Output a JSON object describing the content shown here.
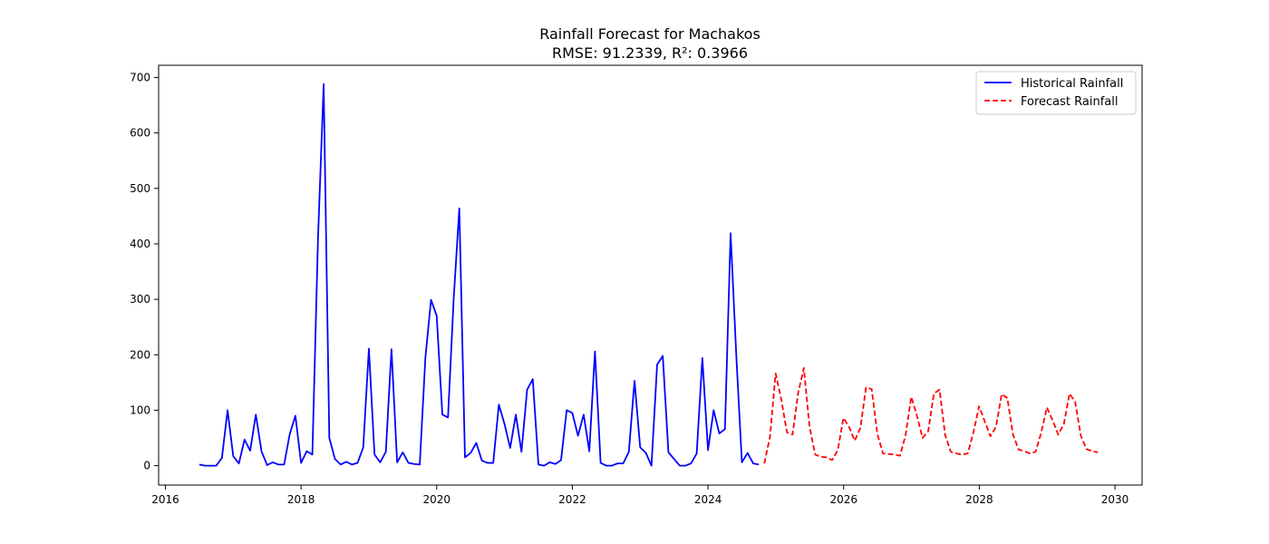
{
  "chart_data": {
    "type": "line",
    "title": "Rainfall Forecast for Machakos",
    "subtitle": "RMSE: 91.2339, R²: 0.3966",
    "xlabel": "",
    "ylabel": "",
    "xlim": [
      2015.9,
      2030.4
    ],
    "ylim": [
      -35,
      722
    ],
    "xticks": [
      2016,
      2018,
      2020,
      2022,
      2024,
      2026,
      2028,
      2030
    ],
    "xtick_labels": [
      "2016",
      "2018",
      "2020",
      "2022",
      "2024",
      "2026",
      "2028",
      "2030"
    ],
    "yticks": [
      0,
      100,
      200,
      300,
      400,
      500,
      600,
      700
    ],
    "ytick_labels": [
      "0",
      "100",
      "200",
      "300",
      "400",
      "500",
      "600",
      "700"
    ],
    "grid": false,
    "legend_position": "upper-right",
    "series": [
      {
        "name": "Historical Rainfall",
        "color": "#0000ff",
        "dash": "solid",
        "start": 2016.5,
        "step": 0.08333,
        "values": [
          2,
          0,
          0,
          0,
          14,
          100,
          17,
          4,
          47,
          27,
          92,
          26,
          1,
          6,
          2,
          2,
          57,
          90,
          5,
          26,
          20,
          410,
          688,
          50,
          12,
          2,
          7,
          2,
          5,
          33,
          211,
          20,
          6,
          25,
          210,
          6,
          24,
          5,
          3,
          2,
          195,
          299,
          270,
          92,
          87,
          300,
          464,
          15,
          23,
          41,
          9,
          5,
          5,
          110,
          75,
          32,
          92,
          25,
          137,
          156,
          2,
          0,
          6,
          3,
          10,
          100,
          95,
          54,
          92,
          26,
          206,
          5,
          0,
          0,
          4,
          4,
          25,
          153,
          33,
          23,
          0,
          182,
          198,
          24,
          12,
          0,
          0,
          4,
          22,
          194,
          28,
          100,
          58,
          66,
          419,
          200,
          6,
          23,
          4,
          2
        ]
      },
      {
        "name": "Forecast Rainfall",
        "color": "#ff0000",
        "dash": "dashed",
        "start": 2024.83,
        "step": 0.08333,
        "values": [
          4,
          52,
          166,
          120,
          60,
          56,
          132,
          176,
          70,
          20,
          16,
          15,
          10,
          28,
          86,
          70,
          45,
          68,
          141,
          138,
          57,
          22,
          21,
          20,
          18,
          55,
          124,
          90,
          50,
          62,
          130,
          137,
          55,
          25,
          22,
          20,
          22,
          60,
          107,
          80,
          53,
          70,
          129,
          122,
          56,
          29,
          26,
          22,
          25,
          60,
          105,
          82,
          56,
          75,
          130,
          115,
          54,
          30,
          26,
          24
        ]
      }
    ]
  }
}
